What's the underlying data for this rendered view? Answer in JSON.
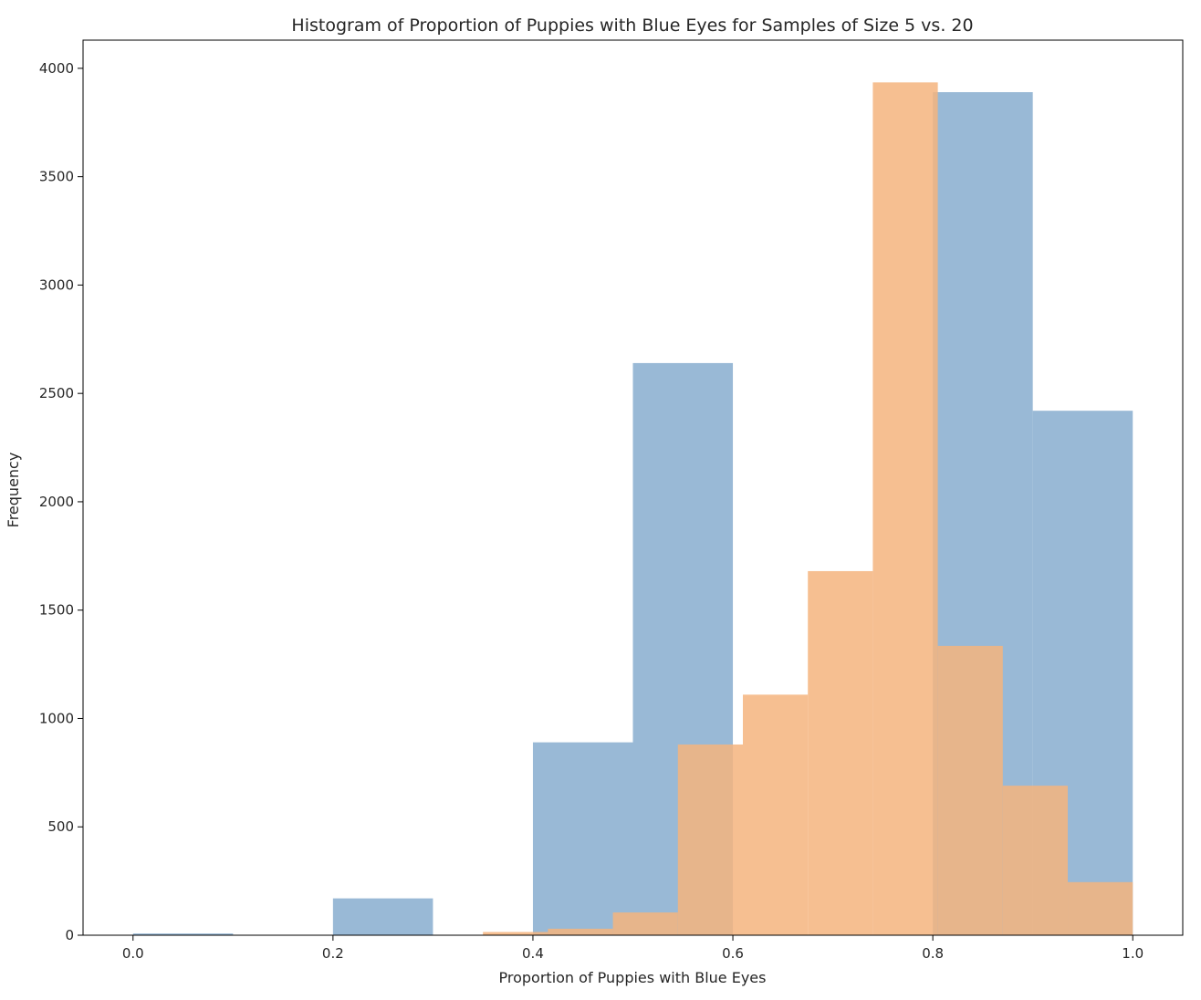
{
  "chart_data": {
    "type": "bar",
    "title": "Histogram of Proportion of Puppies with Blue Eyes for Samples of Size 5 vs. 20",
    "xlabel": "Proportion of Puppies with Blue Eyes",
    "ylabel": "Frequency",
    "xlim": [
      -0.05,
      1.05
    ],
    "ylim": [
      0,
      4130
    ],
    "xticks": [
      "0.0",
      "0.2",
      "0.4",
      "0.6",
      "0.8",
      "1.0"
    ],
    "yticks": [
      "0",
      "500",
      "1000",
      "1500",
      "2000",
      "2500",
      "3000",
      "3500",
      "4000"
    ],
    "grid": false,
    "legend": "none",
    "series": [
      {
        "color": "#7fa7cc",
        "opacity": 0.8,
        "bin_edges": [
          0.0,
          0.1,
          0.2,
          0.3,
          0.4,
          0.5,
          0.6,
          0.7,
          0.8,
          0.9,
          1.0
        ],
        "values": [
          8,
          0,
          170,
          0,
          890,
          2640,
          0,
          0,
          3890,
          2420
        ]
      },
      {
        "color": "#f4b47e",
        "opacity": 0.85,
        "bin_edges": [
          0.35,
          0.415,
          0.48,
          0.545,
          0.61,
          0.675,
          0.74,
          0.805,
          0.87,
          0.935,
          1.0
        ],
        "values": [
          15,
          30,
          105,
          880,
          1110,
          1680,
          3935,
          1335,
          690,
          245
        ]
      }
    ]
  }
}
